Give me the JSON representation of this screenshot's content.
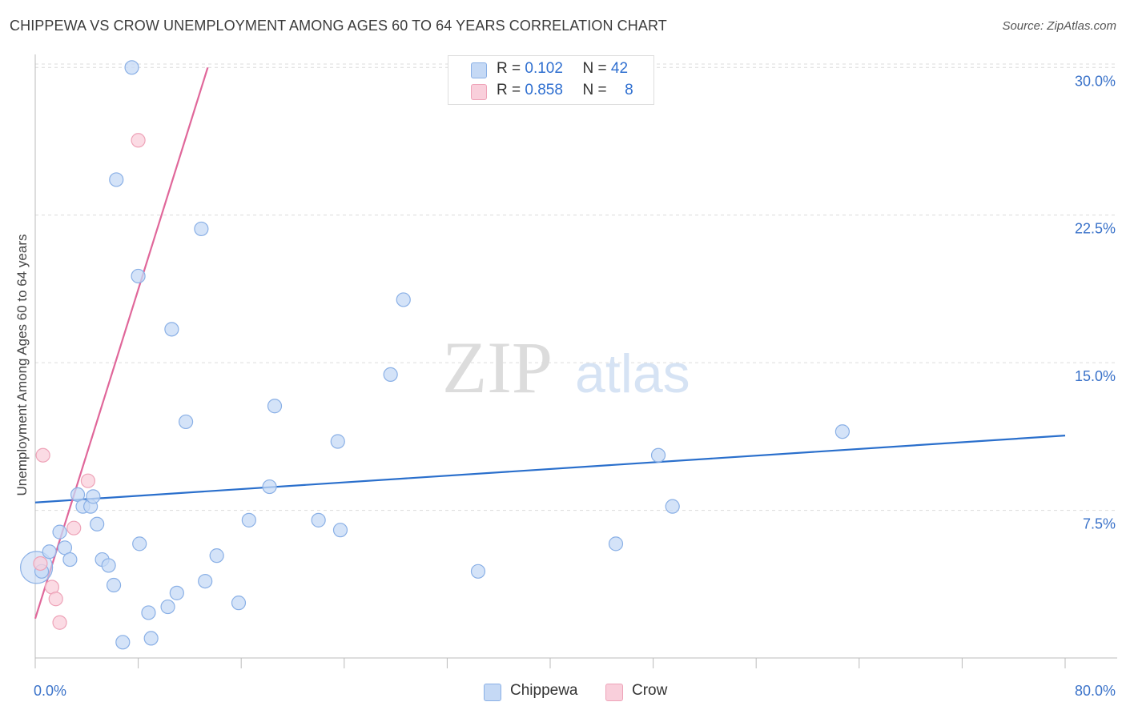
{
  "header": {
    "title": "CHIPPEWA VS CROW UNEMPLOYMENT AMONG AGES 60 TO 64 YEARS CORRELATION CHART",
    "source": "Source: ZipAtlas.com"
  },
  "watermark": {
    "zip": "ZIP",
    "atlas": "atlas"
  },
  "legend": {
    "rows": [
      {
        "r_label": "R =",
        "r_value": "0.102",
        "n_label": "N =",
        "n_value": "42"
      },
      {
        "r_label": "R =",
        "r_value": "0.858",
        "n_label": "N =",
        "n_value": "8"
      }
    ]
  },
  "bottom_legend": {
    "series1": "Chippewa",
    "series2": "Crow"
  },
  "colors": {
    "chippewa_fill": "#c5d9f5",
    "chippewa_stroke": "#8ab0e6",
    "chippewa_line": "#2a6fcc",
    "crow_fill": "#f9cfdb",
    "crow_stroke": "#eea3b8",
    "crow_line": "#e0679a",
    "tick_text": "#3a72c9",
    "grid": "#dcdcdc"
  },
  "chart_data": {
    "type": "scatter",
    "title": "CHIPPEWA VS CROW UNEMPLOYMENT AMONG AGES 60 TO 64 YEARS CORRELATION CHART",
    "xlabel": "",
    "ylabel": "Unemployment Among Ages 60 to 64 years",
    "xlim": [
      0,
      80
    ],
    "ylim": [
      0,
      30.5
    ],
    "x_tick_labels": [
      "0.0%",
      "80.0%"
    ],
    "y_ticks": [
      7.5,
      15,
      22.5,
      30
    ],
    "y_tick_labels": [
      "7.5%",
      "15.0%",
      "22.5%",
      "30.0%"
    ],
    "grid": true,
    "series": [
      {
        "name": "Chippewa",
        "x": [
          0.1,
          0.5,
          1.1,
          1.9,
          2.3,
          2.7,
          3.3,
          3.7,
          4.3,
          4.5,
          4.8,
          5.2,
          5.7,
          6.1,
          6.3,
          6.8,
          7.5,
          8.0,
          8.1,
          8.8,
          9.0,
          10.3,
          10.6,
          11.0,
          11.7,
          12.9,
          13.2,
          14.1,
          15.8,
          16.6,
          18.2,
          18.6,
          22.0,
          23.5,
          23.7,
          27.6,
          28.6,
          34.4,
          45.1,
          48.4,
          49.5,
          62.7
        ],
        "y": [
          4.6,
          4.4,
          5.4,
          6.4,
          5.6,
          5.0,
          8.3,
          7.7,
          7.7,
          8.2,
          6.8,
          5.0,
          4.7,
          3.7,
          24.3,
          0.8,
          30.0,
          19.4,
          5.8,
          2.3,
          1.0,
          2.6,
          16.7,
          3.3,
          12.0,
          21.8,
          3.9,
          5.2,
          2.8,
          7.0,
          8.7,
          12.8,
          7.0,
          11.0,
          6.5,
          14.4,
          18.2,
          4.4,
          5.8,
          10.3,
          7.7,
          11.5
        ]
      },
      {
        "name": "Crow",
        "x": [
          0.4,
          0.6,
          1.3,
          1.6,
          1.9,
          3.0,
          4.1,
          8.0
        ],
        "y": [
          4.8,
          10.3,
          3.6,
          3.0,
          1.8,
          6.6,
          9.0,
          26.3
        ]
      }
    ],
    "trend_lines": [
      {
        "name": "Chippewa",
        "x": [
          0,
          80
        ],
        "y": [
          7.9,
          11.3
        ]
      },
      {
        "name": "Crow",
        "x": [
          0,
          13.4
        ],
        "y": [
          2.0,
          30.0
        ]
      }
    ]
  }
}
